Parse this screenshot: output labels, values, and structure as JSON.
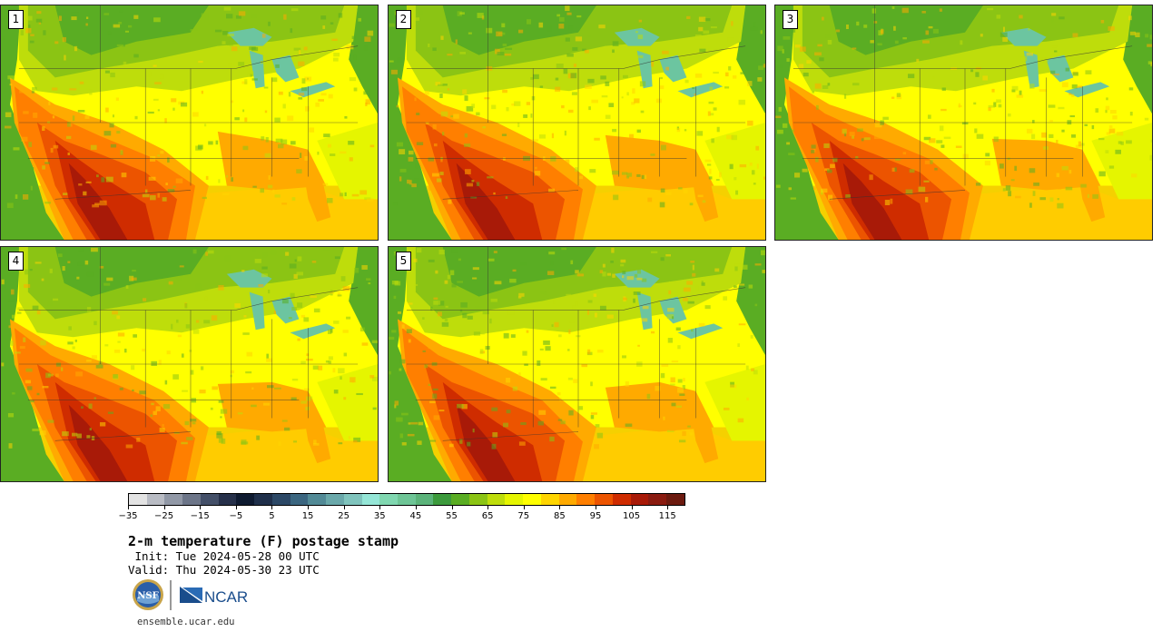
{
  "panels": [
    {
      "label": "1",
      "variant": 0
    },
    {
      "label": "2",
      "variant": 1
    },
    {
      "label": "3",
      "variant": 2
    },
    {
      "label": "4",
      "variant": 3
    },
    {
      "label": "5",
      "variant": 4
    }
  ],
  "colorbar": {
    "ticks": [
      "−35",
      "−25",
      "−15",
      "−5",
      "5",
      "15",
      "25",
      "35",
      "45",
      "55",
      "65",
      "75",
      "85",
      "95",
      "105",
      "115"
    ],
    "colors": [
      "#e3e3e3",
      "#b9bcc4",
      "#9198a6",
      "#6c7588",
      "#434f68",
      "#26304a",
      "#0e1a30",
      "#1f2f4a",
      "#2c4866",
      "#3b6680",
      "#528a96",
      "#6aa8aa",
      "#80c4bd",
      "#95e6d7",
      "#80d7b0",
      "#6ec596",
      "#5bb37a",
      "#3c9a3c",
      "#5aad23",
      "#8bc414",
      "#bedd0b",
      "#e5f500",
      "#ffff00",
      "#ffd500",
      "#ffaa00",
      "#ff7f00",
      "#ec5400",
      "#cf2c00",
      "#a81a08",
      "#8a1b10",
      "#6c1a0f"
    ]
  },
  "text": {
    "title": "2-m temperature (F) postage stamp",
    "init": " Init: Tue 2024-05-28 00 UTC",
    "valid": "Valid: Thu 2024-05-30 23 UTC",
    "website": "ensemble.ucar.edu",
    "nsf_logo": "NSF",
    "ncar_logo": "NCAR"
  },
  "accent_colors": {
    "ocean_atlantic": "#2e9e3a",
    "gulf_water": "#ffcc00",
    "hot_core": "#b02400",
    "lakes": "#6cc5a0"
  }
}
